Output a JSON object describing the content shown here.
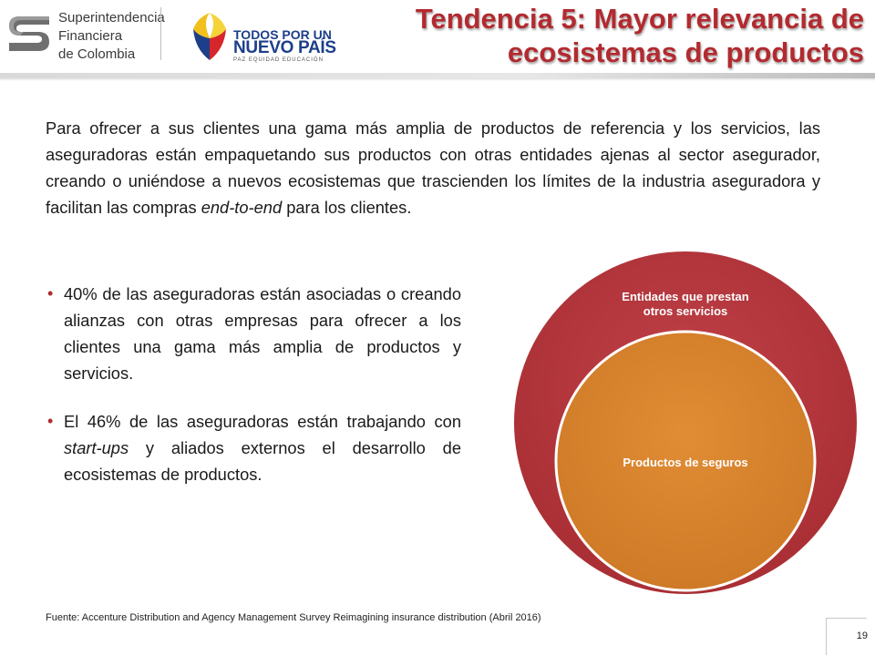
{
  "header": {
    "org_logo": {
      "lines": [
        "Superintendencia",
        "Financiera",
        "de Colombia"
      ],
      "icon": "sfc-s-emblem-icon"
    },
    "gov_logo": {
      "line1": "TODOS POR UN",
      "line2": "NUEVO PAÍS",
      "line3": "PAZ  EQUIDAD  EDUCACIÓN",
      "icon": "colombia-flag-wings-icon"
    },
    "title_line1": "Tendencia 5: Mayor relevancia de",
    "title_line2": "ecosistemas de productos"
  },
  "intro": {
    "before": "Para ofrecer a sus clientes una gama más amplia de productos de referencia y los servicios, las aseguradoras están empaquetando sus productos con otras entidades ajenas al sector asegurador, creando o uniéndose a nuevos ecosistemas que trascienden los límites de la industria aseguradora y facilitan las compras ",
    "emphasis": "end-to-end",
    "after": " para los clientes."
  },
  "bullets": [
    {
      "before": "40% de las aseguradoras están asociadas o creando alianzas con otras empresas para ofrecer a los clientes una gama más amplia de productos y servicios.",
      "emphasis": "",
      "after": ""
    },
    {
      "before": "El 46% de las aseguradoras están trabajando con ",
      "emphasis": "start-ups",
      "after": " y aliados externos el desarrollo de ecosistemas de productos."
    }
  ],
  "diagram": {
    "outer_label_line1": "Entidades que prestan",
    "outer_label_line2": "otros servicios",
    "inner_label": "Productos de seguros",
    "outer_color": "#b3373d",
    "inner_color": "#d9822e"
  },
  "colors": {
    "title": "#b22a2f",
    "logo_blue": "#1d3f8a"
  },
  "footer": {
    "source": "Fuente: Accenture Distribution and Agency Management Survey Reimagining insurance distribution (Abril 2016)",
    "page_number": "19"
  }
}
